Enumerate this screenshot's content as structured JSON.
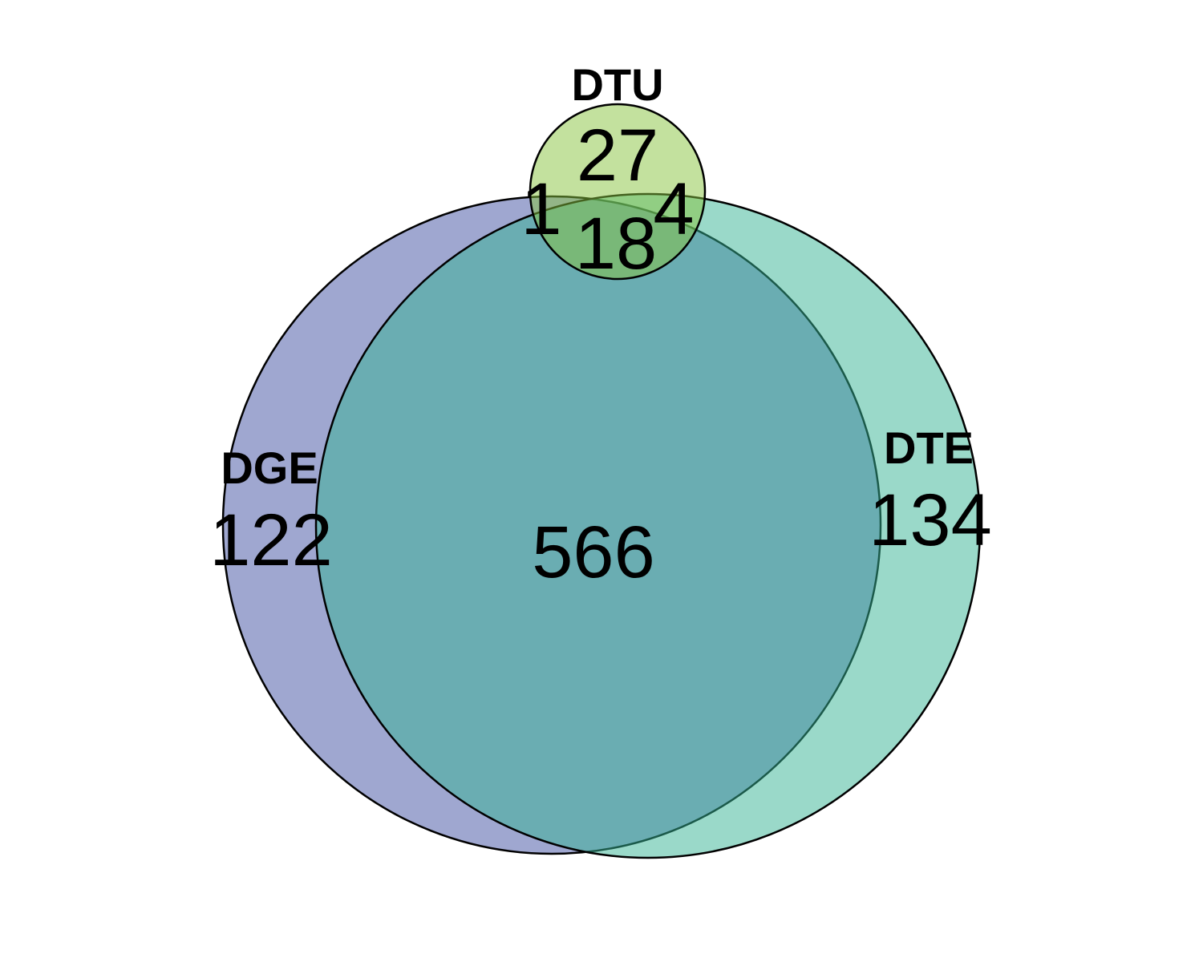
{
  "sets": [
    {
      "id": "dge",
      "name": "DGE",
      "color": "#3f4fa1",
      "fill_opacity": 0.5
    },
    {
      "id": "dte",
      "name": "DTE",
      "color": "#36b394",
      "fill_opacity": 0.5
    },
    {
      "id": "dtu",
      "name": "DTU",
      "color": "#88c43d",
      "fill_opacity": 0.5
    }
  ],
  "regions": {
    "dge_only": "122",
    "dte_only": "134",
    "dtu_only": "27",
    "dge_dte": "566",
    "dge_dtu": "1",
    "dte_dtu": "4",
    "dge_dte_dtu": "18"
  }
}
